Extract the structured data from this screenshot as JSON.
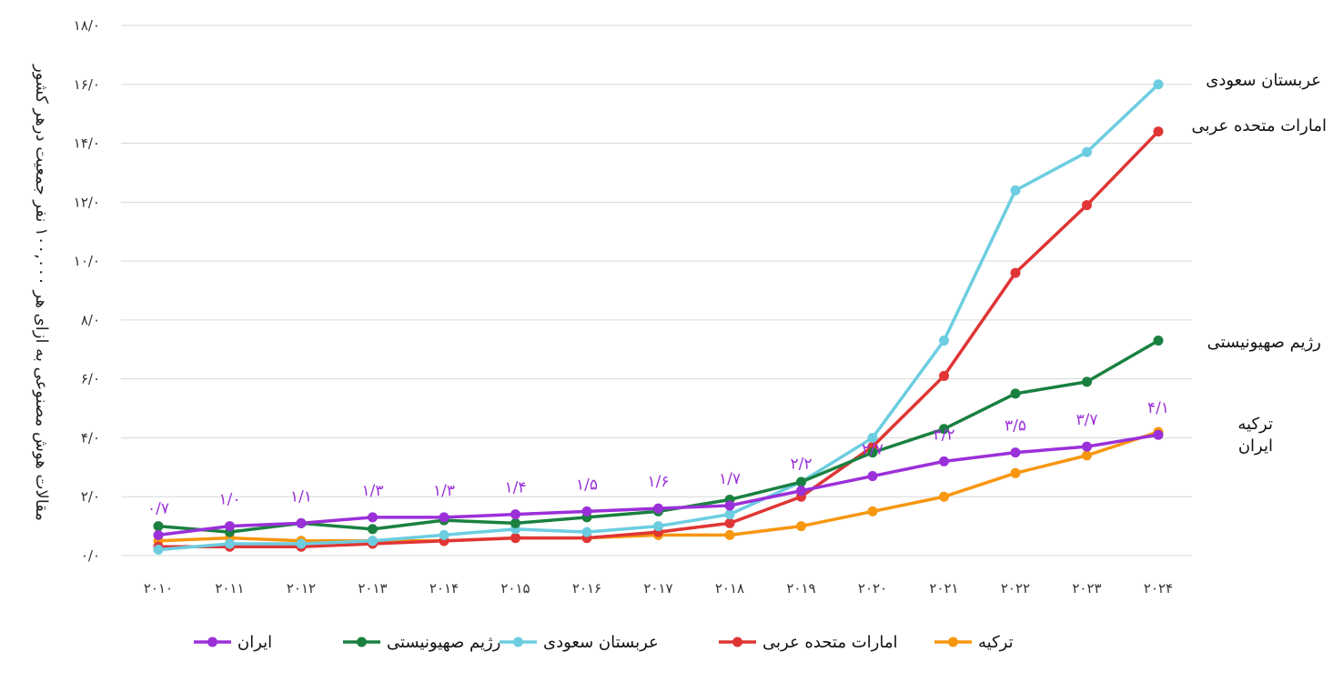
{
  "chart_data": {
    "type": "line",
    "ylabel": "مقالات هوش مصنوعی به ازای هر ۱۰۰,۰۰۰ نفر جمعیت درهر کشور",
    "xlabel": "",
    "x": [
      "2010",
      "2011",
      "2012",
      "2013",
      "2014",
      "2015",
      "2016",
      "2017",
      "2018",
      "2019",
      "2020",
      "2021",
      "2022",
      "2023",
      "2024"
    ],
    "x_tick_labels": [
      "۲۰۱۰",
      "۲۰۱۱",
      "۲۰۱۲",
      "۲۰۱۳",
      "۲۰۱۴",
      "۲۰۱۵",
      "۲۰۱۶",
      "۲۰۱۷",
      "۲۰۱۸",
      "۲۰۱۹",
      "۲۰۲۰",
      "۲۰۲۱",
      "۲۰۲۲",
      "۲۰۲۳",
      "۲۰۲۴"
    ],
    "ylim": [
      0,
      18
    ],
    "y_ticks": [
      0,
      2,
      4,
      6,
      8,
      10,
      12,
      14,
      16,
      18
    ],
    "y_tick_labels": [
      "۰/۰",
      "۲/۰",
      "۴/۰",
      "۶/۰",
      "۸/۰",
      "۱۰/۰",
      "۱۲/۰",
      "۱۴/۰",
      "۱۶/۰",
      "۱۸/۰"
    ],
    "grid": true,
    "legend_position": "bottom",
    "series": [
      {
        "name": "ایران",
        "color": "#9b30d9",
        "values": [
          0.7,
          1.0,
          1.1,
          1.3,
          1.3,
          1.4,
          1.5,
          1.6,
          1.7,
          2.2,
          2.7,
          3.2,
          3.5,
          3.7,
          4.1
        ],
        "data_labels": [
          "۰/۷",
          "۱/۰",
          "۱/۱",
          "۱/۳",
          "۱/۳",
          "۱/۴",
          "۱/۵",
          "۱/۶",
          "۱/۷",
          "۲/۲",
          "۲/۷",
          "۳/۲",
          "۳/۵",
          "۳/۷",
          "۴/۱"
        ],
        "end_label": "ایران"
      },
      {
        "name": "رژیم صهیونیستی",
        "color": "#1a8040",
        "values": [
          1.0,
          0.8,
          1.1,
          0.9,
          1.2,
          1.1,
          1.3,
          1.5,
          1.9,
          2.5,
          3.5,
          4.3,
          5.5,
          5.9,
          7.3
        ],
        "end_label": "رژیم صهیونیستی"
      },
      {
        "name": "عربستان سعودی",
        "color": "#6ccde0",
        "values": [
          0.2,
          0.4,
          0.4,
          0.5,
          0.7,
          0.9,
          0.8,
          1.0,
          1.4,
          2.5,
          4.0,
          7.3,
          12.4,
          13.7,
          16.0
        ],
        "end_label": "عربستان سعودی"
      },
      {
        "name": "امارات متحده عربی",
        "color": "#e03535",
        "values": [
          0.3,
          0.3,
          0.3,
          0.4,
          0.5,
          0.6,
          0.6,
          0.8,
          1.1,
          2.0,
          3.7,
          6.1,
          9.6,
          11.9,
          14.4
        ],
        "end_label": "امارات متحده عربی"
      },
      {
        "name": "ترکیه",
        "color": "#f7960f",
        "values": [
          0.5,
          0.6,
          0.5,
          0.5,
          0.5,
          0.6,
          0.6,
          0.7,
          0.7,
          1.0,
          1.5,
          2.0,
          2.8,
          3.4,
          4.2
        ],
        "end_label": "ترکیه"
      }
    ]
  }
}
